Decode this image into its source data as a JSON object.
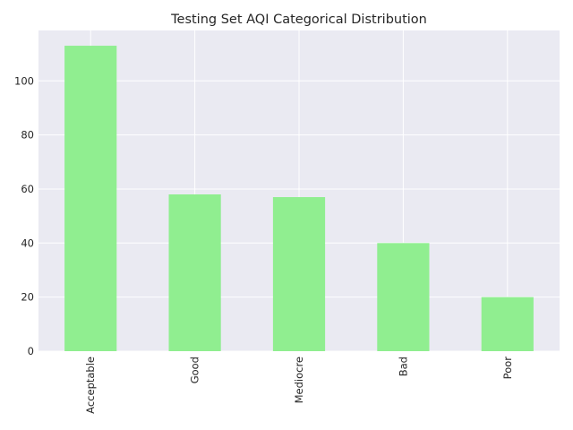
{
  "chart_data": {
    "type": "bar",
    "title": "Testing Set AQI Categorical Distribution",
    "xlabel": "",
    "ylabel": "",
    "categories": [
      "Acceptable",
      "Good",
      "Mediocre",
      "Bad",
      "Poor"
    ],
    "values": [
      113,
      58,
      57,
      40,
      20
    ],
    "ylim": [
      0,
      118.65
    ],
    "yticks": [
      0,
      20,
      40,
      60,
      80,
      100
    ],
    "grid": true,
    "legend": "none",
    "x_tick_rotation": "vertical",
    "colors": {
      "bar": "#90ee90",
      "plot_background": "#eaeaf2",
      "grid": "#ffffff",
      "text": "#262626"
    }
  }
}
